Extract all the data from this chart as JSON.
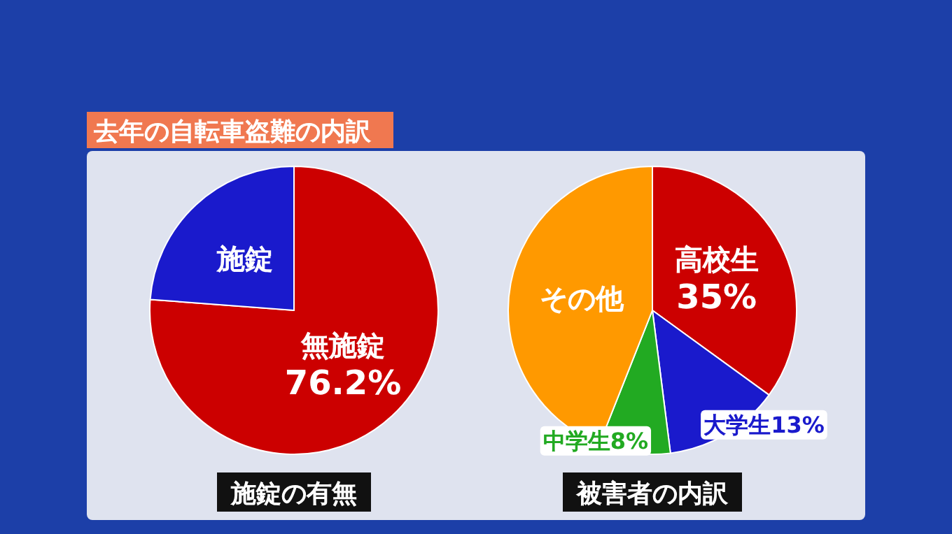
{
  "chart_data": [
    {
      "type": "pie",
      "title": "施錠の有無",
      "annotations": [
        "去年の自転車盗難の内訳"
      ],
      "categories": [
        "無施錠",
        "施錠"
      ],
      "values": [
        76.2,
        23.8
      ],
      "colors": [
        "#cc0000",
        "#1a1acc"
      ],
      "value_labels": [
        "76.2%",
        null
      ]
    },
    {
      "type": "pie",
      "title": "被害者の内訳",
      "categories": [
        "高校生",
        "大学生",
        "中学生",
        "その他"
      ],
      "values": [
        35,
        13,
        8,
        44
      ],
      "colors": [
        "#cc0000",
        "#1a1acc",
        "#22aa22",
        "#ff9900"
      ],
      "value_labels": [
        "35%",
        "13%",
        "8%",
        null
      ]
    }
  ]
}
